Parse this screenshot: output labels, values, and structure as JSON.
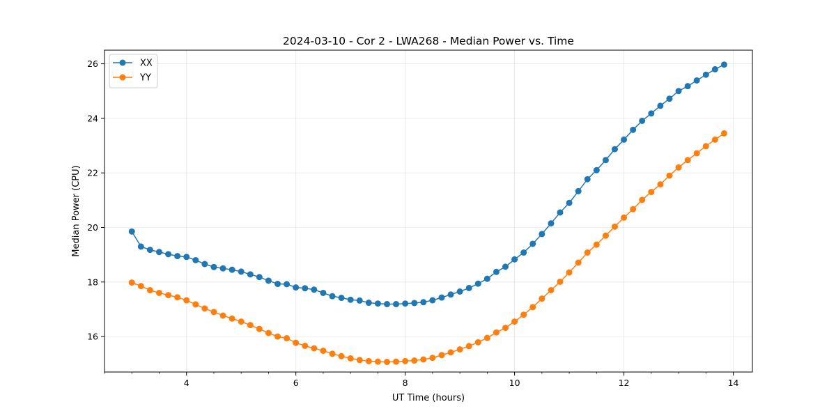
{
  "chart_data": {
    "type": "line",
    "title": "2024-03-10 - Cor 2 - LWA268 - Median Power vs. Time",
    "xlabel": "UT Time (hours)",
    "ylabel": "Median Power (CPU)",
    "xlim": [
      2.5,
      14.35
    ],
    "ylim": [
      14.7,
      26.5
    ],
    "xticks": [
      4,
      6,
      8,
      10,
      12,
      14
    ],
    "xtick_labels": [
      "4",
      "6",
      "8",
      "10",
      "12",
      "14"
    ],
    "x_minor_step": 0.5,
    "yticks": [
      16,
      18,
      20,
      22,
      24,
      26
    ],
    "ytick_labels": [
      "16",
      "18",
      "20",
      "22",
      "24",
      "26"
    ],
    "grid": true,
    "legend_position": "top-left",
    "x": [
      3.0,
      3.167,
      3.333,
      3.5,
      3.667,
      3.833,
      4.0,
      4.167,
      4.333,
      4.5,
      4.667,
      4.833,
      5.0,
      5.167,
      5.333,
      5.5,
      5.667,
      5.833,
      6.0,
      6.167,
      6.333,
      6.5,
      6.667,
      6.833,
      7.0,
      7.167,
      7.333,
      7.5,
      7.667,
      7.833,
      8.0,
      8.167,
      8.333,
      8.5,
      8.667,
      8.833,
      9.0,
      9.167,
      9.333,
      9.5,
      9.667,
      9.833,
      10.0,
      10.167,
      10.333,
      10.5,
      10.667,
      10.833,
      11.0,
      11.167,
      11.333,
      11.5,
      11.667,
      11.833,
      12.0,
      12.167,
      12.333,
      12.5,
      12.667,
      12.833,
      13.0,
      13.167,
      13.333,
      13.5,
      13.667,
      13.833
    ],
    "series": [
      {
        "name": "XX",
        "color": "#1f77b4",
        "values": [
          19.85,
          19.3,
          19.18,
          19.1,
          19.02,
          18.95,
          18.92,
          18.8,
          18.66,
          18.55,
          18.5,
          18.45,
          18.38,
          18.28,
          18.18,
          18.05,
          17.93,
          17.92,
          17.8,
          17.77,
          17.72,
          17.6,
          17.48,
          17.42,
          17.35,
          17.32,
          17.24,
          17.21,
          17.19,
          17.19,
          17.21,
          17.23,
          17.26,
          17.33,
          17.43,
          17.54,
          17.65,
          17.78,
          17.94,
          18.12,
          18.37,
          18.56,
          18.83,
          19.08,
          19.4,
          19.76,
          20.15,
          20.55,
          20.9,
          21.33,
          21.77,
          22.1,
          22.47,
          22.87,
          23.22,
          23.58,
          23.91,
          24.18,
          24.46,
          24.72,
          25.0,
          25.18,
          25.39,
          25.6,
          25.8,
          25.97
        ]
      },
      {
        "name": "YY",
        "color": "#ff7f0e",
        "values": [
          17.98,
          17.85,
          17.7,
          17.6,
          17.52,
          17.44,
          17.33,
          17.18,
          17.03,
          16.9,
          16.77,
          16.66,
          16.55,
          16.42,
          16.28,
          16.13,
          16.0,
          15.94,
          15.77,
          15.66,
          15.57,
          15.48,
          15.37,
          15.28,
          15.2,
          15.14,
          15.1,
          15.08,
          15.07,
          15.08,
          15.1,
          15.12,
          15.16,
          15.22,
          15.32,
          15.42,
          15.53,
          15.65,
          15.79,
          15.95,
          16.15,
          16.32,
          16.55,
          16.8,
          17.08,
          17.39,
          17.7,
          18.01,
          18.35,
          18.71,
          19.08,
          19.37,
          19.7,
          20.03,
          20.36,
          20.67,
          21.01,
          21.3,
          21.58,
          21.9,
          22.2,
          22.47,
          22.72,
          22.98,
          23.22,
          23.45
        ]
      }
    ]
  }
}
